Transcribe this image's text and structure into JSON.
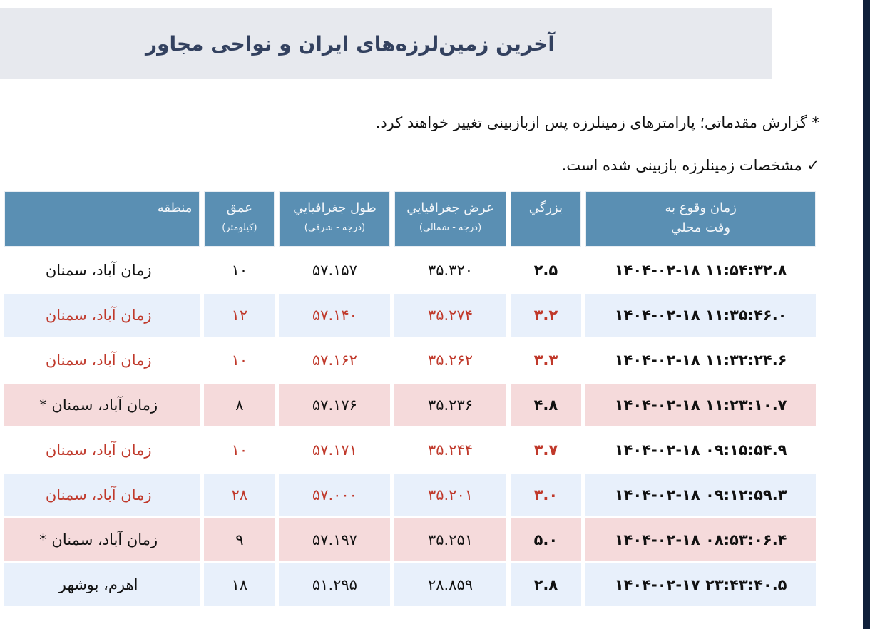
{
  "title": "آخرین زمین‌لرزه‌های ایران و نواحی مجاور",
  "notes": {
    "preliminary": "* گزارش مقدماتی؛ پارامترهای زمینلرزه پس ازبازبینی تغییر خواهند کرد.",
    "reviewed": "✓ مشخصات زمینلرزه بازبینی شده است."
  },
  "table": {
    "headers": {
      "time": {
        "line1": "زمان وقوع به",
        "line2": "وقت محلي"
      },
      "magnitude": {
        "line1": "بزرگي",
        "line2": ""
      },
      "latitude": {
        "line1": "عرض جغرافيايي",
        "line2": "(درجه - شمالی)"
      },
      "longitude": {
        "line1": "طول جغرافيايي",
        "line2": "(درجه - شرقی)"
      },
      "depth": {
        "line1": "عمق",
        "line2": "(کیلومتر)"
      },
      "region": {
        "line1": "منطقه",
        "line2": ""
      }
    },
    "rows": [
      {
        "time": "۱۴۰۴-۰۲-۱۸ ۱۱:۵۴:۳۲.۸",
        "magnitude": "۲.۵",
        "latitude": "۳۵.۳۲۰",
        "longitude": "۵۷.۱۵۷",
        "depth": "۱۰",
        "region": "زمان آباد، سمنان"
      },
      {
        "time": "۱۴۰۴-۰۲-۱۸ ۱۱:۳۵:۴۶.۰",
        "magnitude": "۳.۲",
        "latitude": "۳۵.۲۷۴",
        "longitude": "۵۷.۱۴۰",
        "depth": "۱۲",
        "region": "زمان آباد، سمنان"
      },
      {
        "time": "۱۴۰۴-۰۲-۱۸ ۱۱:۳۲:۲۴.۶",
        "magnitude": "۳.۳",
        "latitude": "۳۵.۲۶۲",
        "longitude": "۵۷.۱۶۲",
        "depth": "۱۰",
        "region": "زمان آباد، سمنان"
      },
      {
        "time": "۱۴۰۴-۰۲-۱۸ ۱۱:۲۳:۱۰.۷",
        "magnitude": "۴.۸",
        "latitude": "۳۵.۲۳۶",
        "longitude": "۵۷.۱۷۶",
        "depth": "۸",
        "region": "زمان آباد، سمنان *"
      },
      {
        "time": "۱۴۰۴-۰۲-۱۸ ۰۹:۱۵:۵۴.۹",
        "magnitude": "۳.۷",
        "latitude": "۳۵.۲۴۴",
        "longitude": "۵۷.۱۷۱",
        "depth": "۱۰",
        "region": "زمان آباد، سمنان"
      },
      {
        "time": "۱۴۰۴-۰۲-۱۸ ۰۹:۱۲:۵۹.۳",
        "magnitude": "۳.۰",
        "latitude": "۳۵.۲۰۱",
        "longitude": "۵۷.۰۰۰",
        "depth": "۲۸",
        "region": "زمان آباد، سمنان"
      },
      {
        "time": "۱۴۰۴-۰۲-۱۸ ۰۸:۵۳:۰۶.۴",
        "magnitude": "۵.۰",
        "latitude": "۳۵.۲۵۱",
        "longitude": "۵۷.۱۹۷",
        "depth": "۹",
        "region": "زمان آباد، سمنان *"
      },
      {
        "time": "۱۴۰۴-۰۲-۱۷ ۲۳:۴۳:۴۰.۵",
        "magnitude": "۲.۸",
        "latitude": "۲۸.۸۵۹",
        "longitude": "۵۱.۲۹۵",
        "depth": "۱۸",
        "region": "اهرم، بوشهر"
      }
    ]
  },
  "colors": {
    "header_bg": "#5a8fb3",
    "title_bg": "#e7e9ee",
    "title_text": "#33415f",
    "time_text": "#1a1ab8",
    "reviewed_text": "#c0392b",
    "row_blue": "#e8f0fb",
    "row_pink": "#f5dadb",
    "nav_strip": "#0f1f3a"
  }
}
